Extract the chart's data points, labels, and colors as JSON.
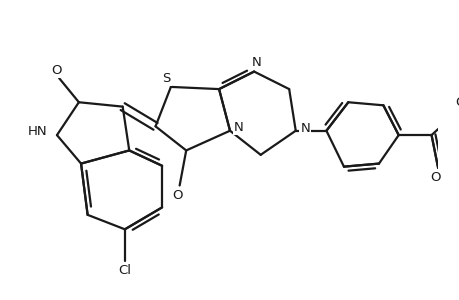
{
  "bg_color": "#ffffff",
  "line_color": "#1a1a1a",
  "line_width": 1.6,
  "font_size": 9.5,
  "figsize": [
    4.6,
    3.0
  ],
  "dpi": 100,
  "xlim": [
    0,
    10
  ],
  "ylim": [
    0,
    6.52
  ]
}
